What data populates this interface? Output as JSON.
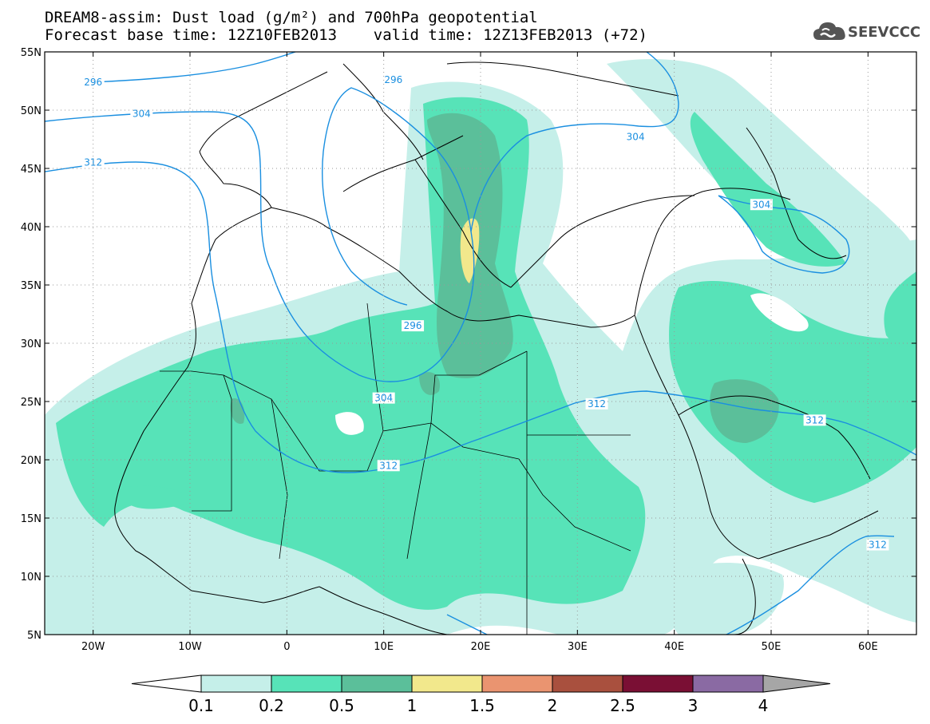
{
  "header": {
    "title_line1": "DREAM8-assim: Dust load (g/m²) and 700hPa geopotential",
    "title_line2": "Forecast base time: 12Z10FEB2013    valid time: 12Z13FEB2013 (+72)",
    "logo_text": "SEEVCCC",
    "logo_icon": "cloud-icon"
  },
  "map": {
    "lon_range": [
      -25,
      65
    ],
    "lat_range": [
      5,
      55
    ],
    "lat_labels": [
      "55N",
      "50N",
      "45N",
      "40N",
      "35N",
      "30N",
      "25N",
      "20N",
      "15N",
      "10N",
      "5N"
    ],
    "lat_values": [
      55,
      50,
      45,
      40,
      35,
      30,
      25,
      20,
      15,
      10,
      5
    ],
    "lon_labels": [
      "20W",
      "10W",
      "0",
      "10E",
      "20E",
      "30E",
      "40E",
      "50E",
      "60E"
    ],
    "lon_values": [
      -20,
      -10,
      0,
      10,
      20,
      30,
      40,
      50,
      60
    ],
    "contour_color": "#1a8fe0",
    "contour_labels": [
      {
        "text": "296",
        "lon": -20,
        "lat": 52.4
      },
      {
        "text": "296",
        "lon": 11,
        "lat": 52.6
      },
      {
        "text": "296",
        "lon": 13,
        "lat": 31.5
      },
      {
        "text": "304",
        "lon": -15,
        "lat": 49.7
      },
      {
        "text": "304",
        "lon": 36,
        "lat": 47.7
      },
      {
        "text": "304",
        "lon": 49,
        "lat": 41.9
      },
      {
        "text": "304",
        "lon": 10,
        "lat": 25.3
      },
      {
        "text": "312",
        "lon": -20,
        "lat": 45.5
      },
      {
        "text": "312",
        "lon": 32,
        "lat": 24.8
      },
      {
        "text": "312",
        "lon": 10.5,
        "lat": 19.5
      },
      {
        "text": "312",
        "lon": 54.5,
        "lat": 23.4
      },
      {
        "text": "312",
        "lon": 61,
        "lat": 12.7
      }
    ]
  },
  "colorbar": {
    "labels": [
      "0.1",
      "0.2",
      "0.5",
      "1",
      "1.5",
      "2",
      "2.5",
      "3",
      "4"
    ],
    "colors": [
      "#c5efe9",
      "#57e3b8",
      "#5bbf9a",
      "#f2e88c",
      "#ea9470",
      "#a9503e",
      "#7a0f34",
      "#8a6aa3",
      "#a6a6a6"
    ],
    "below_color": "#ffffff"
  }
}
